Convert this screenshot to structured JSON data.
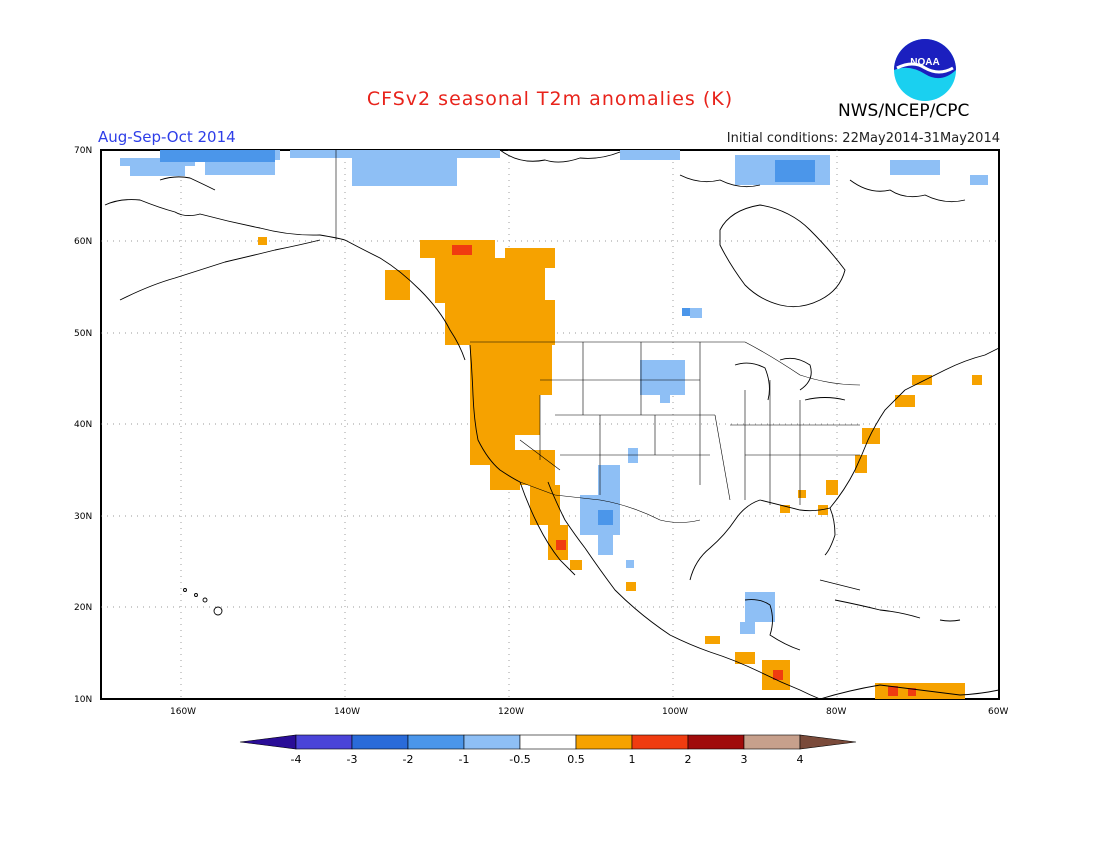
{
  "title": "CFSv2 seasonal T2m anomalies (K)",
  "season": "Aug-Sep-Oct 2014",
  "initial_conditions": "Initial conditions: 22May2014-31May2014",
  "agency": "NWS/NCEP/CPC",
  "logo_text": "NOAA",
  "map": {
    "lon_range": [
      -172,
      -60
    ],
    "lat_range": [
      10,
      70
    ],
    "lat_ticks": [
      "70N",
      "60N",
      "50N",
      "40N",
      "30N",
      "20N",
      "10N"
    ],
    "lon_ticks": [
      "160W",
      "140W",
      "120W",
      "100W",
      "80W",
      "60W"
    ],
    "grid": "dotted",
    "regions": [
      {
        "name": "warm",
        "anomaly": 0.7,
        "color": "#f6a200"
      },
      {
        "name": "hot",
        "anomaly": 1.5,
        "color": "#f03c10"
      },
      {
        "name": "cool",
        "anomaly": -0.7,
        "color": "#8ebff5"
      },
      {
        "name": "cold",
        "anomaly": -1.5,
        "color": "#4b96ea"
      }
    ]
  },
  "colorbar": {
    "labels": [
      "-4",
      "-3",
      "-2",
      "-1",
      "-0.5",
      "0.5",
      "1",
      "2",
      "3",
      "4"
    ],
    "colors": [
      "#2a0d97",
      "#4a44d8",
      "#2a6bd9",
      "#4b96ea",
      "#8ebff5",
      "#ffffff",
      "#f6a200",
      "#f03c10",
      "#a00b0b",
      "#c7a08c",
      "#7a4a3a"
    ]
  }
}
